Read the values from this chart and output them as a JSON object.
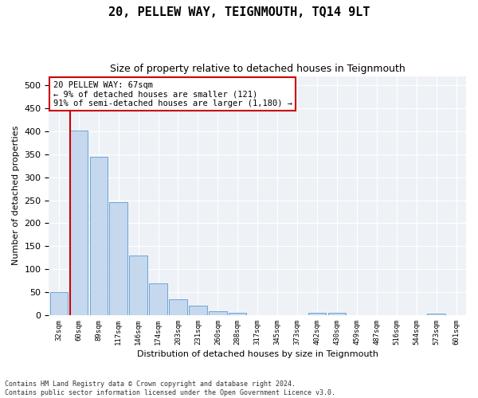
{
  "title": "20, PELLEW WAY, TEIGNMOUTH, TQ14 9LT",
  "subtitle": "Size of property relative to detached houses in Teignmouth",
  "xlabel": "Distribution of detached houses by size in Teignmouth",
  "ylabel": "Number of detached properties",
  "categories": [
    "32sqm",
    "60sqm",
    "89sqm",
    "117sqm",
    "146sqm",
    "174sqm",
    "203sqm",
    "231sqm",
    "260sqm",
    "288sqm",
    "317sqm",
    "345sqm",
    "373sqm",
    "402sqm",
    "430sqm",
    "459sqm",
    "487sqm",
    "516sqm",
    "544sqm",
    "573sqm",
    "601sqm"
  ],
  "values": [
    50,
    402,
    345,
    246,
    130,
    70,
    35,
    20,
    8,
    5,
    0,
    0,
    0,
    5,
    5,
    0,
    0,
    0,
    0,
    3,
    0
  ],
  "bar_color": "#c5d8ed",
  "bar_edge_color": "#5b9bd5",
  "highlight_line_index": 1,
  "highlight_color": "#cc0000",
  "ylim": [
    0,
    520
  ],
  "yticks": [
    0,
    50,
    100,
    150,
    200,
    250,
    300,
    350,
    400,
    450,
    500
  ],
  "annotation_text": "20 PELLEW WAY: 67sqm\n← 9% of detached houses are smaller (121)\n91% of semi-detached houses are larger (1,180) →",
  "annotation_box_color": "#ffffff",
  "annotation_box_edge": "#cc0000",
  "footer1": "Contains HM Land Registry data © Crown copyright and database right 2024.",
  "footer2": "Contains public sector information licensed under the Open Government Licence v3.0.",
  "fig_background": "#ffffff",
  "ax_background": "#eef2f7",
  "grid_color": "#ffffff",
  "title_fontsize": 11,
  "subtitle_fontsize": 9,
  "ylabel_fontsize": 8,
  "xlabel_fontsize": 8,
  "ytick_fontsize": 8,
  "xtick_fontsize": 6.5
}
